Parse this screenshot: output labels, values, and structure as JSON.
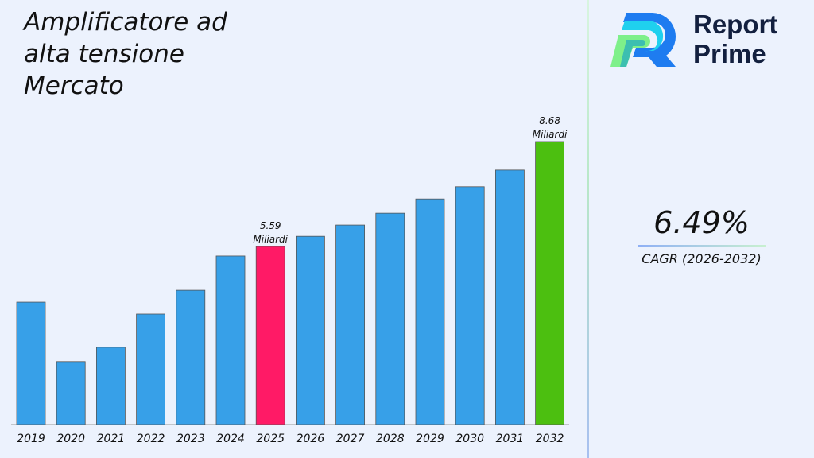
{
  "title": "Amplificatore ad alta tensione Mercato",
  "brand": {
    "line1": "Report",
    "line2": "Prime"
  },
  "cagr": {
    "value": "6.49%",
    "label": "CAGR (2026-2032)"
  },
  "colors": {
    "default_bar": "#37a0e8",
    "highlight_2025": "#ff1a66",
    "highlight_2032": "#4cbf10",
    "background": "#ecf2fd"
  },
  "chart_data": {
    "type": "bar",
    "title": "Amplificatore ad alta tensione Mercato",
    "xlabel": "",
    "ylabel": "",
    "grid": false,
    "categories": [
      "2019",
      "2020",
      "2021",
      "2022",
      "2023",
      "2024",
      "2025",
      "2026",
      "2027",
      "2028",
      "2029",
      "2030",
      "2031",
      "2032"
    ],
    "values": [
      3.95,
      2.2,
      2.62,
      3.6,
      4.3,
      5.31,
      5.59,
      5.89,
      6.22,
      6.57,
      6.99,
      7.35,
      7.84,
      8.68
    ],
    "data_labels": [
      {
        "category": "2025",
        "value": "5.59",
        "unit": "Miliardi"
      },
      {
        "category": "2032",
        "value": "8.68",
        "unit": "Miliardi"
      }
    ]
  }
}
